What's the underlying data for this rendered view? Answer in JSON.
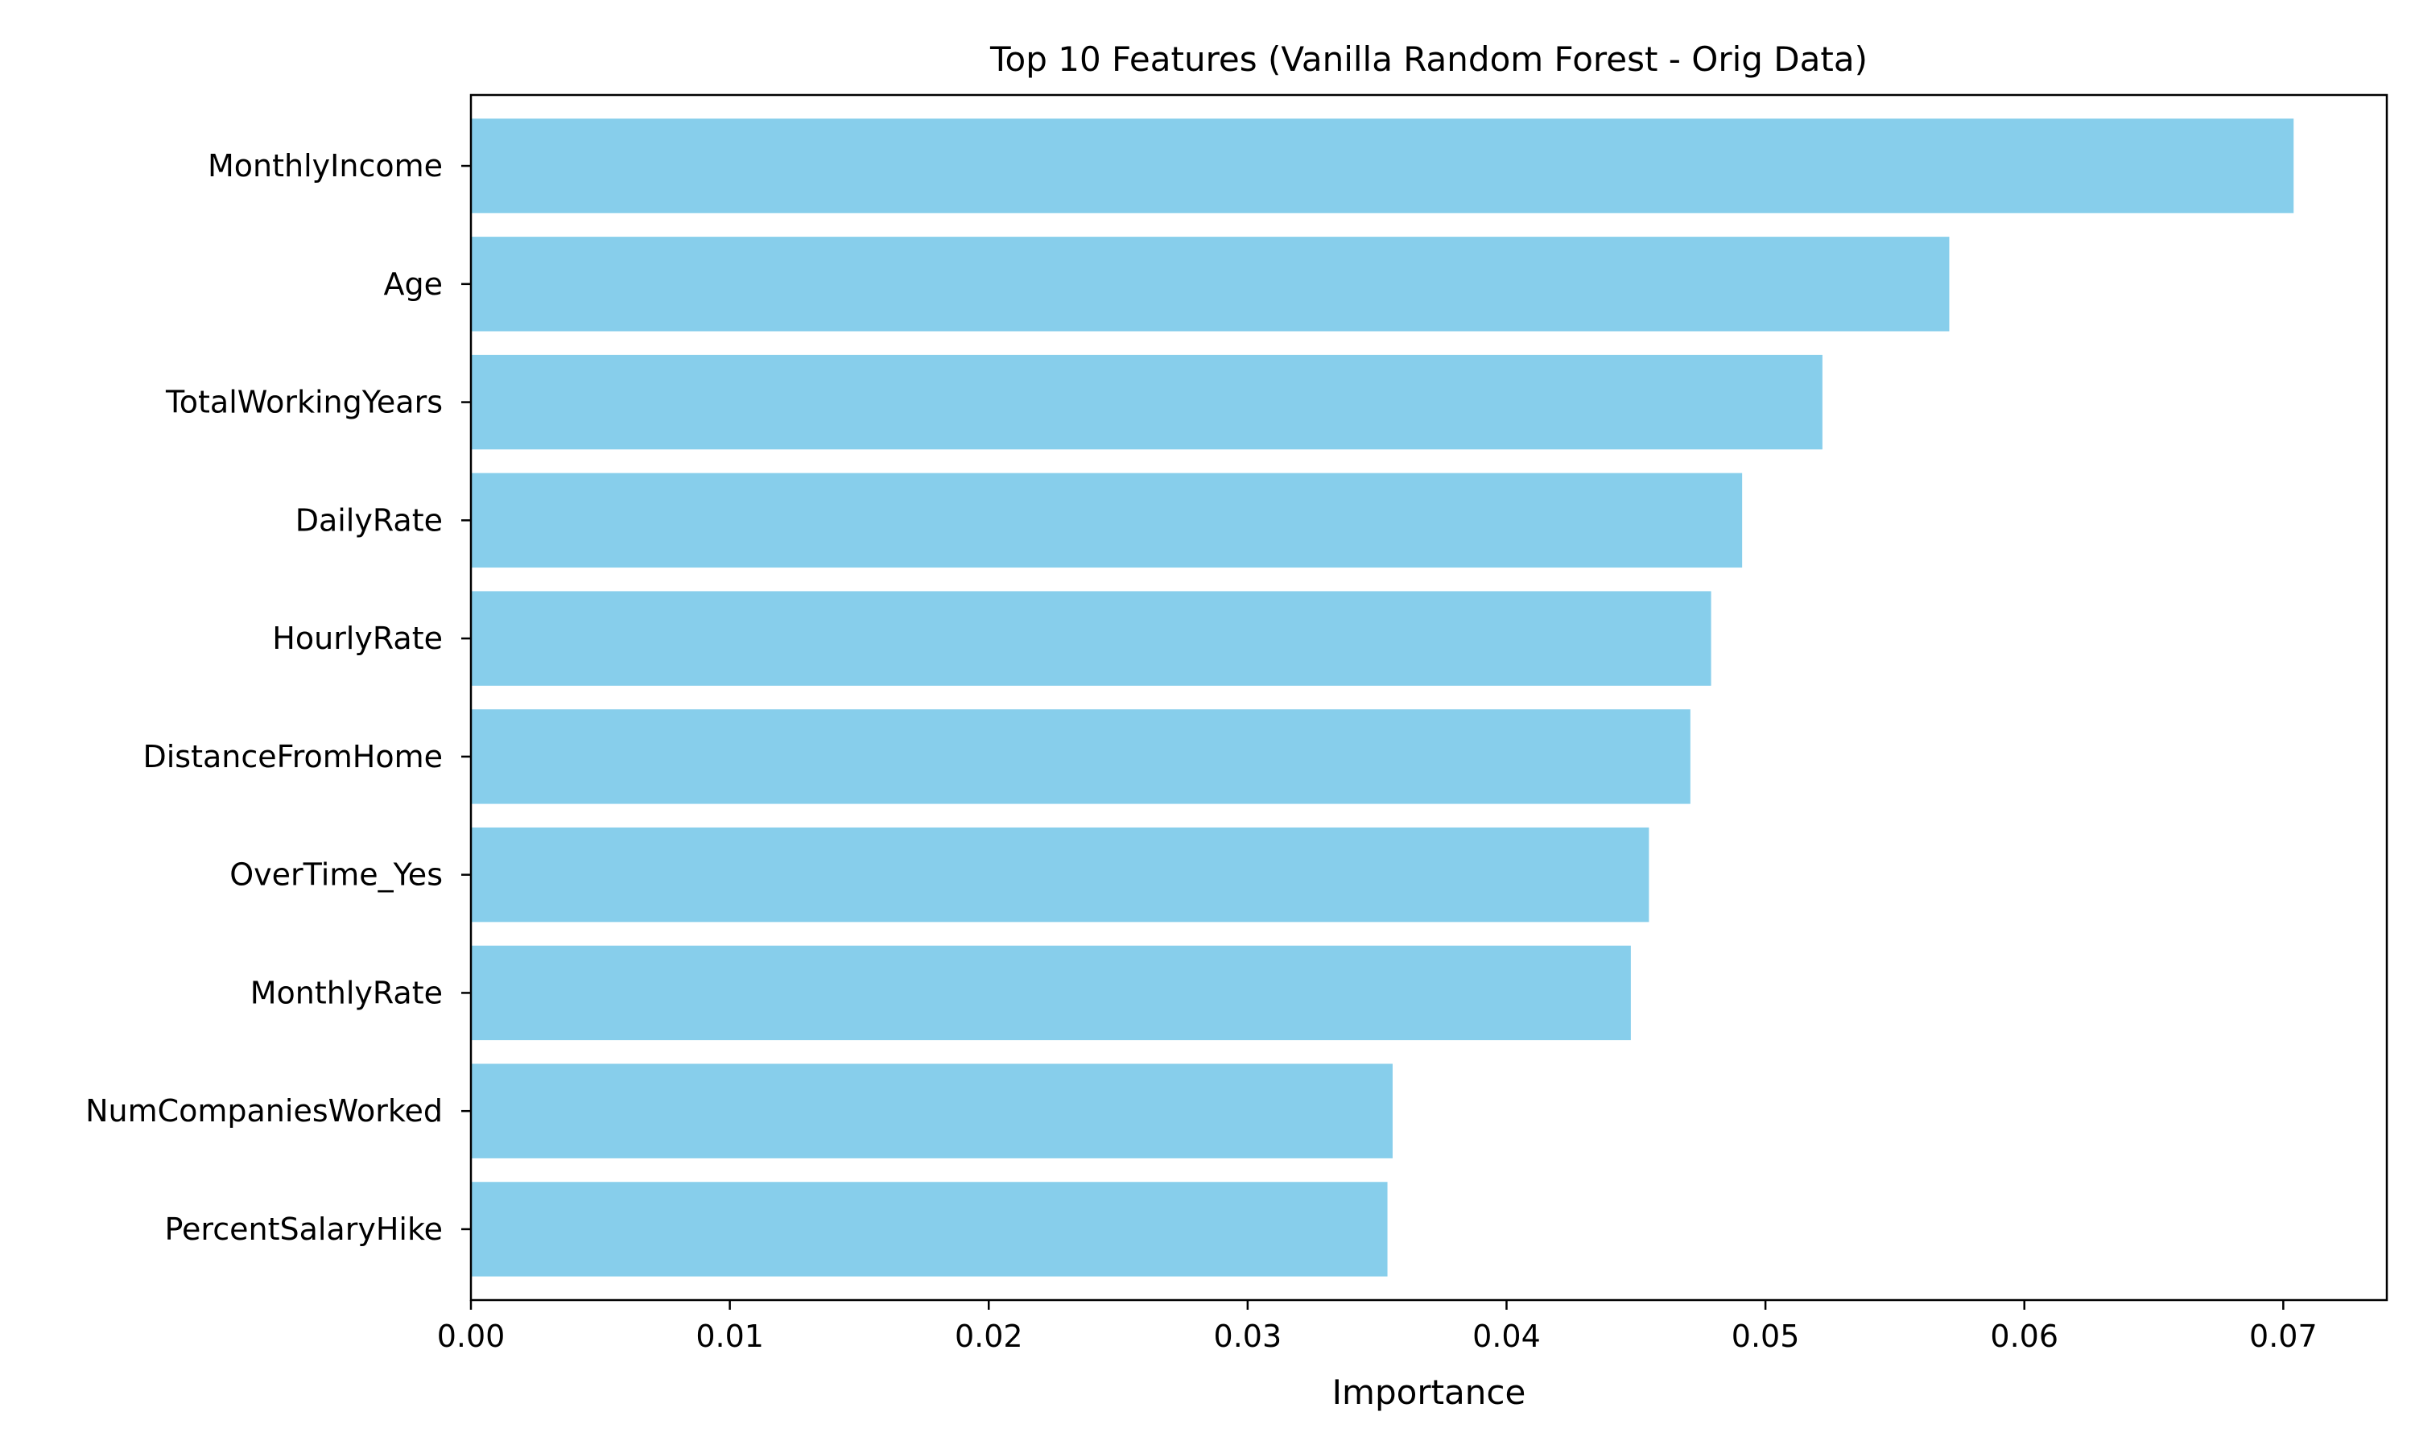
{
  "chart_data": {
    "type": "bar",
    "orientation": "horizontal",
    "title": "Top 10 Features (Vanilla Random Forest - Orig Data)",
    "xlabel": "Importance",
    "ylabel": "",
    "categories": [
      "MonthlyIncome",
      "Age",
      "TotalWorkingYears",
      "DailyRate",
      "HourlyRate",
      "DistanceFromHome",
      "OverTime_Yes",
      "MonthlyRate",
      "NumCompaniesWorked",
      "PercentSalaryHike"
    ],
    "values": [
      0.0704,
      0.0571,
      0.0522,
      0.0491,
      0.0479,
      0.0471,
      0.0455,
      0.0448,
      0.0356,
      0.0354
    ],
    "xlim": [
      0,
      0.074
    ],
    "xticks": [
      0.0,
      0.01,
      0.02,
      0.03,
      0.04,
      0.05,
      0.06,
      0.07
    ],
    "xtick_labels": [
      "0.00",
      "0.01",
      "0.02",
      "0.03",
      "0.04",
      "0.05",
      "0.06",
      "0.07"
    ],
    "bar_color": "#87ceeb",
    "grid": false,
    "legend": "none"
  }
}
